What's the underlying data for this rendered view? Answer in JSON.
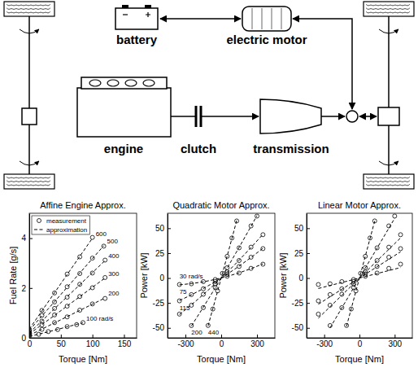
{
  "diagram": {
    "nodes": [
      {
        "label": "battery"
      },
      {
        "label": "electric motor"
      },
      {
        "label": "engine"
      },
      {
        "label": "clutch"
      },
      {
        "label": "transmission"
      }
    ]
  },
  "chart_data": [
    {
      "type": "line",
      "title": "Affine Engine Approx.",
      "x_label": "Torque [Nm]",
      "y_label": "Fuel Rate [g/s]",
      "xlim": [
        0,
        170
      ],
      "ylim": [
        0,
        5
      ],
      "xticks": [
        0,
        50,
        100,
        150
      ],
      "yticks": [
        0,
        2,
        4
      ],
      "legend": "upper left",
      "curve_labels": [
        "100 rad/s",
        "200",
        "300",
        "400",
        "500",
        "600"
      ],
      "x": [
        [
          0,
          15,
          30,
          45,
          60,
          75,
          85
        ],
        [
          0,
          20,
          40,
          60,
          80,
          100,
          120
        ],
        [
          0,
          20,
          40,
          60,
          80,
          100,
          120
        ],
        [
          0,
          20,
          40,
          60,
          80,
          100,
          120
        ],
        [
          0,
          20,
          40,
          60,
          80,
          100,
          118
        ],
        [
          0,
          20,
          40,
          60,
          80,
          100
        ]
      ],
      "series": [
        {
          "name": "measurement",
          "type": "scatter",
          "marker": "circle",
          "color": "#000000",
          "values": [
            [
              0.06,
              0.14,
              0.25,
              0.33,
              0.45,
              0.53,
              0.61
            ],
            [
              0.12,
              0.34,
              0.61,
              0.84,
              1.11,
              1.36,
              1.58
            ],
            [
              0.17,
              0.52,
              0.92,
              1.27,
              1.66,
              2.01,
              2.42
            ],
            [
              0.22,
              0.67,
              1.18,
              1.63,
              2.15,
              2.6,
              3.12
            ],
            [
              0.28,
              0.9,
              1.44,
              2.05,
              2.58,
              3.2,
              3.68
            ],
            [
              0.33,
              1.1,
              1.8,
              2.56,
              3.25,
              4.03
            ]
          ]
        },
        {
          "name": "approximation",
          "type": "line",
          "line_style": "dashed",
          "color": "#000000",
          "values": [
            [
              0.05,
              0.15,
              0.24,
              0.34,
              0.44,
              0.54,
              0.6
            ],
            [
              0.1,
              0.35,
              0.6,
              0.85,
              1.1,
              1.35,
              1.6
            ],
            [
              0.15,
              0.53,
              0.9,
              1.28,
              1.65,
              2.03,
              2.4
            ],
            [
              0.2,
              0.68,
              1.17,
              1.65,
              2.13,
              2.62,
              3.1
            ],
            [
              0.3,
              0.88,
              1.45,
              2.03,
              2.6,
              3.18,
              3.7
            ],
            [
              0.35,
              1.08,
              1.81,
              2.54,
              3.27,
              4.0
            ]
          ]
        }
      ]
    },
    {
      "type": "line",
      "title": "Quadratic Motor Approx.",
      "x_label": "Torque [Nm]",
      "y_label": "Power [kW]",
      "xlim": [
        -450,
        450
      ],
      "ylim": [
        -60,
        65
      ],
      "xticks": [
        -300,
        0,
        300
      ],
      "yticks": [
        -50,
        -25,
        0,
        25,
        50
      ],
      "curve_labels": [
        "30 rad/s",
        "75",
        "115",
        "200",
        "440"
      ],
      "x": [
        [
          -350,
          -250,
          -150,
          -50,
          50,
          150,
          250,
          350
        ],
        [
          -350,
          -250,
          -150,
          -50,
          50,
          150,
          250,
          350
        ],
        [
          -350,
          -250,
          -150,
          -50,
          50,
          150,
          250,
          350
        ],
        [
          -250,
          -150,
          -50,
          50,
          150,
          250,
          300
        ],
        [
          -110,
          -70,
          -30,
          10,
          50,
          90,
          130
        ]
      ],
      "series": [
        {
          "type": "scatter",
          "marker": "circle",
          "color": "#000000",
          "values": [
            [
              -6.5,
              -5.8,
              -3.6,
              -1.5,
              1.8,
              5.0,
              9.7,
              13.9
            ],
            [
              -22.9,
              -16.6,
              -10.8,
              -3.5,
              4.0,
              11.6,
              20.9,
              29.5
            ],
            [
              -36.2,
              -27.3,
              -16.3,
              -5.9,
              6.1,
              17.6,
              31.0,
              43.5
            ],
            [
              -47.7,
              -29.7,
              -9.6,
              10.4,
              30.3,
              52.3,
              62.2
            ],
            [
              -47.6,
              -31.1,
              -12.9,
              4.7,
              21.8,
              40.2,
              57.3
            ]
          ]
        },
        {
          "type": "line",
          "line_style": "dashed",
          "color": "#000000",
          "values": [
            [
              -6.8,
              -5.6,
              -3.8,
              -1.4,
              1.6,
              5.2,
              9.4,
              14.2
            ],
            [
              -22.6,
              -16.9,
              -10.6,
              -3.7,
              3.8,
              11.9,
              20.6,
              29.9
            ],
            [
              -36.6,
              -26.9,
              -16.6,
              -5.7,
              5.8,
              17.9,
              30.6,
              43.9
            ],
            [
              -48.1,
              -29.3,
              -9.9,
              10.1,
              30.7,
              51.9,
              62.7
            ],
            [
              -48.0,
              -30.7,
              -13.2,
              4.4,
              22.1,
              39.8,
              57.7
            ]
          ]
        }
      ]
    },
    {
      "type": "line",
      "title": "Linear Motor Approx.",
      "x_label": "Torque [Nm]",
      "y_label": "Power [kW]",
      "xlim": [
        -450,
        450
      ],
      "ylim": [
        -60,
        65
      ],
      "xticks": [
        -300,
        0,
        300
      ],
      "yticks": [
        -50,
        -25,
        0,
        25,
        50
      ],
      "x": [
        [
          -350,
          -250,
          -150,
          -50,
          50,
          150,
          250,
          350
        ],
        [
          -350,
          -250,
          -150,
          -50,
          50,
          150,
          250,
          350
        ],
        [
          -350,
          -250,
          -150,
          -50,
          50,
          150,
          250,
          350
        ],
        [
          -250,
          -150,
          -50,
          50,
          150,
          250,
          300
        ],
        [
          -110,
          -70,
          -30,
          10,
          50,
          90,
          130
        ]
      ],
      "series": [
        {
          "type": "scatter",
          "marker": "circle",
          "color": "#000000",
          "values": [
            [
              -6.5,
              -5.8,
              -3.6,
              -1.5,
              1.8,
              5.0,
              9.7,
              13.9
            ],
            [
              -22.9,
              -16.6,
              -10.8,
              -3.5,
              4.0,
              11.6,
              20.9,
              29.5
            ],
            [
              -36.2,
              -27.3,
              -16.3,
              -5.9,
              6.1,
              17.6,
              31.0,
              43.5
            ],
            [
              -47.7,
              -29.7,
              -9.6,
              10.4,
              30.3,
              52.3,
              62.2
            ],
            [
              -47.6,
              -31.1,
              -12.9,
              4.7,
              21.8,
              40.2,
              57.3
            ]
          ]
        },
        {
          "type": "line",
          "line_style": "dashed",
          "color": "#000000",
          "values": [
            [
              -10.5,
              -7.5,
              -4.5,
              -1.5,
              1.5,
              4.5,
              7.5,
              10.5
            ],
            [
              -26.3,
              -18.8,
              -11.3,
              -3.8,
              3.8,
              11.3,
              18.8,
              26.3
            ],
            [
              -40.3,
              -28.8,
              -17.3,
              -5.8,
              5.8,
              17.3,
              28.8,
              40.3
            ],
            [
              -50,
              -30,
              -10,
              10,
              30,
              50,
              60
            ],
            [
              -48.4,
              -30.8,
              -13.2,
              4.4,
              22,
              39.6,
              57.2
            ]
          ]
        }
      ]
    }
  ]
}
